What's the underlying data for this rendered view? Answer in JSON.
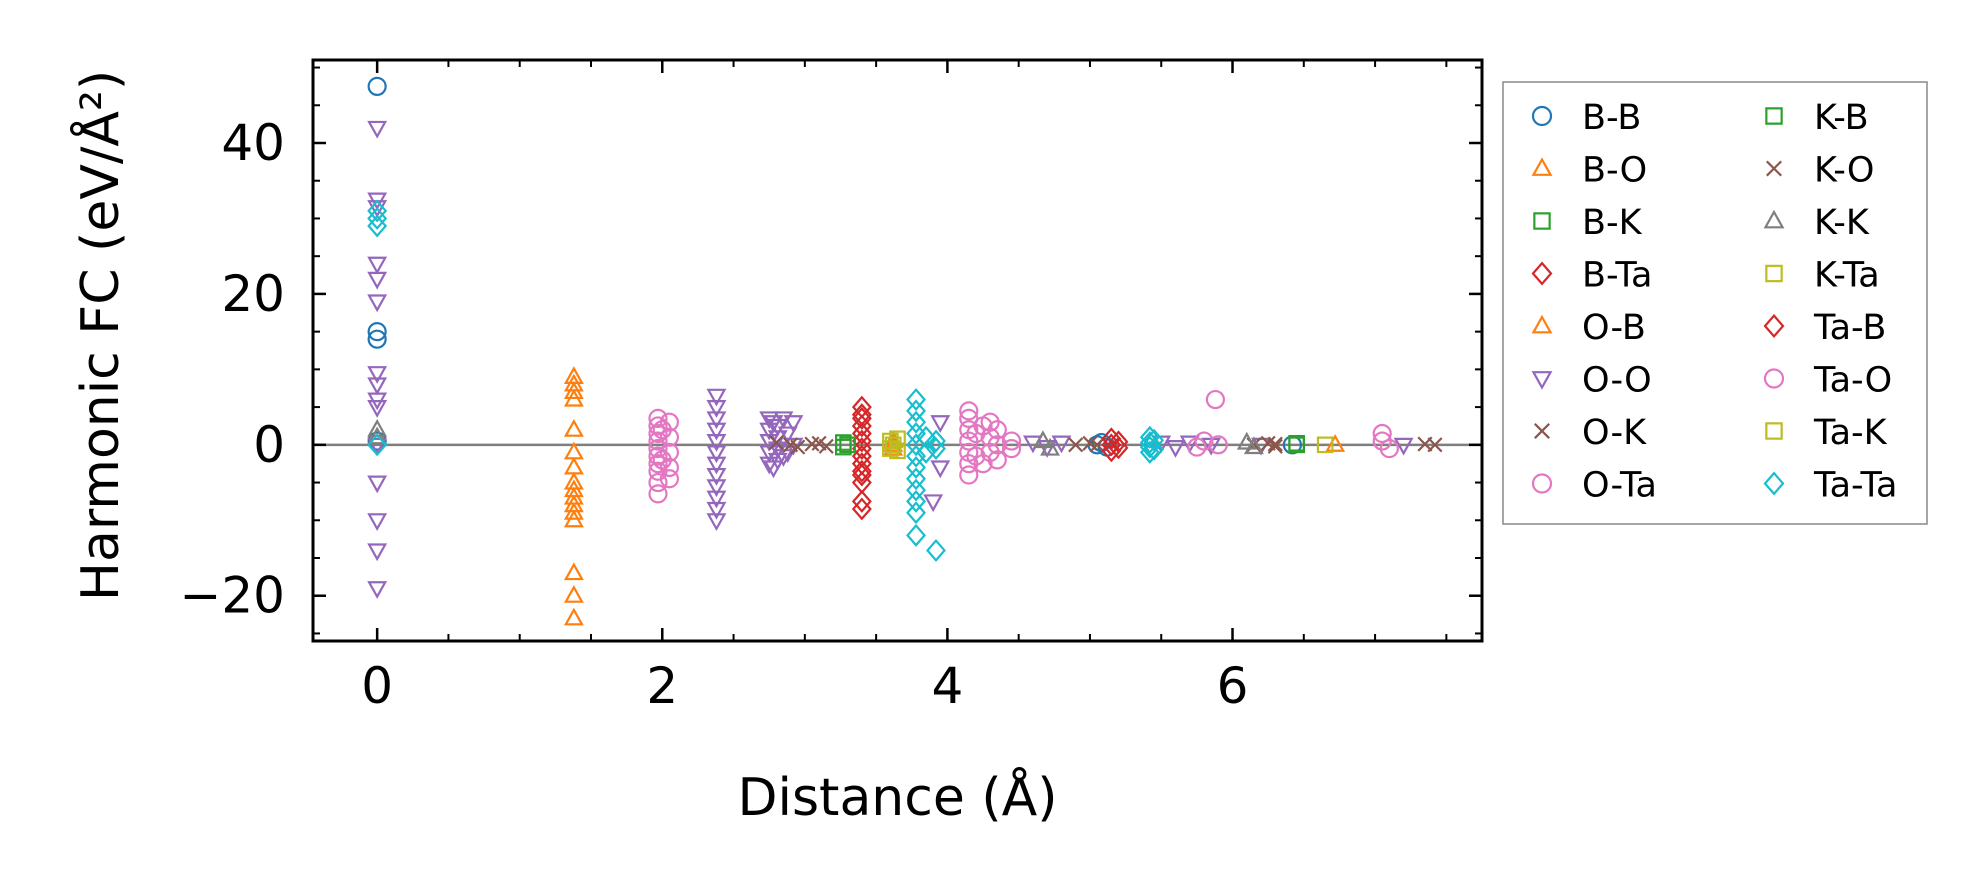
{
  "chart_data": {
    "type": "scatter",
    "title": "",
    "xlabel": "Distance (Å)",
    "ylabel": "Harmonic FC (eV/Å²)",
    "xlim": [
      -0.45,
      7.75
    ],
    "ylim": [
      -26,
      51
    ],
    "xticks": [
      0,
      2,
      4,
      6
    ],
    "yticks": [
      -20,
      0,
      20,
      40
    ],
    "ytick_labels": [
      "−20",
      "0",
      "20",
      "40"
    ],
    "reference_line_y": 0,
    "legend_position": "outside-right",
    "series": [
      {
        "name": "B-B",
        "color": "#1f77b4",
        "marker": "circle",
        "points": [
          [
            0,
            47.5
          ],
          [
            0,
            15
          ],
          [
            0,
            14
          ],
          [
            0,
            0.5
          ],
          [
            5.05,
            0
          ],
          [
            5.08,
            0.3
          ],
          [
            5.12,
            -0.3
          ],
          [
            6.42,
            0
          ]
        ]
      },
      {
        "name": "B-O",
        "color": "#ff7f0e",
        "marker": "triangle-up",
        "points": [
          [
            1.38,
            9
          ],
          [
            1.38,
            8
          ],
          [
            1.38,
            7
          ],
          [
            1.38,
            2
          ],
          [
            1.38,
            -1
          ],
          [
            1.38,
            -3
          ],
          [
            1.38,
            -5
          ],
          [
            1.38,
            -7
          ],
          [
            1.38,
            -8
          ],
          [
            1.38,
            -9
          ],
          [
            1.38,
            -10
          ],
          [
            1.38,
            -17
          ],
          [
            1.38,
            -20
          ],
          [
            1.38,
            -23
          ],
          [
            3.62,
            0.5
          ],
          [
            3.62,
            -0.5
          ],
          [
            6.72,
            0
          ]
        ]
      },
      {
        "name": "B-K",
        "color": "#2ca02c",
        "marker": "square",
        "points": [
          [
            3.27,
            0.3
          ],
          [
            3.27,
            -0.3
          ],
          [
            6.45,
            0
          ]
        ]
      },
      {
        "name": "B-Ta",
        "color": "#d62728",
        "marker": "diamond",
        "points": [
          [
            3.4,
            5
          ],
          [
            3.4,
            3.5
          ],
          [
            3.4,
            2.5
          ],
          [
            3.4,
            1.5
          ],
          [
            3.4,
            0.5
          ],
          [
            3.4,
            -0.5
          ],
          [
            3.4,
            -1.5
          ],
          [
            3.4,
            -2.5
          ],
          [
            3.4,
            -3.5
          ],
          [
            3.4,
            -5
          ],
          [
            3.4,
            -7.5
          ],
          [
            3.4,
            -8.5
          ]
        ]
      },
      {
        "name": "O-B",
        "color": "#ff7f0e",
        "marker": "triangle-up",
        "points": [
          [
            1.38,
            6
          ],
          [
            1.38,
            -6
          ],
          [
            3.62,
            0
          ]
        ]
      },
      {
        "name": "O-O",
        "color": "#9467bd",
        "marker": "triangle-down",
        "points": [
          [
            0,
            42
          ],
          [
            0,
            32.5
          ],
          [
            0,
            31.5
          ],
          [
            0,
            24
          ],
          [
            0,
            22
          ],
          [
            0,
            19
          ],
          [
            0,
            9.5
          ],
          [
            0,
            8
          ],
          [
            0,
            6
          ],
          [
            0,
            5
          ],
          [
            0,
            0
          ],
          [
            0,
            -5
          ],
          [
            0,
            -10
          ],
          [
            0,
            -14
          ],
          [
            0,
            -19
          ],
          [
            2.38,
            6.5
          ],
          [
            2.38,
            5
          ],
          [
            2.38,
            3.5
          ],
          [
            2.38,
            2
          ],
          [
            2.38,
            0.5
          ],
          [
            2.38,
            -1
          ],
          [
            2.38,
            -2.5
          ],
          [
            2.38,
            -4
          ],
          [
            2.38,
            -5.5
          ],
          [
            2.38,
            -7
          ],
          [
            2.38,
            -8.5
          ],
          [
            2.38,
            -10
          ],
          [
            2.75,
            3.5
          ],
          [
            2.75,
            2
          ],
          [
            2.75,
            0.5
          ],
          [
            2.75,
            -1
          ],
          [
            2.75,
            -2.5
          ],
          [
            2.78,
            3
          ],
          [
            2.78,
            -3
          ],
          [
            2.81,
            2.5
          ],
          [
            2.81,
            1
          ],
          [
            2.81,
            -0.5
          ],
          [
            2.81,
            -2
          ],
          [
            2.85,
            3.5
          ],
          [
            2.85,
            -1.5
          ],
          [
            2.88,
            1.5
          ],
          [
            2.88,
            -1
          ],
          [
            2.92,
            3
          ],
          [
            2.92,
            0
          ],
          [
            3.95,
            3
          ],
          [
            3.95,
            -3
          ],
          [
            3.9,
            -7.5
          ],
          [
            4.6,
            0.3
          ],
          [
            4.7,
            -0.3
          ],
          [
            4.8,
            0.3
          ],
          [
            5.5,
            0.3
          ],
          [
            5.6,
            -0.3
          ],
          [
            5.7,
            0.3
          ],
          [
            5.85,
            0
          ],
          [
            6.2,
            0
          ],
          [
            7.2,
            0
          ]
        ]
      },
      {
        "name": "O-K",
        "color": "#8c564b",
        "marker": "x",
        "points": [
          [
            2.8,
            0.3
          ],
          [
            2.95,
            -0.3
          ],
          [
            3.1,
            0.2
          ],
          [
            3.15,
            -0.2
          ],
          [
            4.9,
            0
          ],
          [
            5.0,
            0.2
          ],
          [
            6.15,
            0
          ],
          [
            6.25,
            0.2
          ],
          [
            6.3,
            -0.2
          ],
          [
            7.42,
            0
          ]
        ]
      },
      {
        "name": "O-Ta",
        "color": "#e377c2",
        "marker": "circle",
        "points": [
          [
            1.97,
            3.5
          ],
          [
            1.97,
            2.5
          ],
          [
            1.97,
            1.5
          ],
          [
            1.97,
            0.5
          ],
          [
            1.97,
            -0.5
          ],
          [
            1.97,
            -1.5
          ],
          [
            1.97,
            -2.5
          ],
          [
            1.97,
            -3.5
          ],
          [
            1.97,
            -5
          ],
          [
            1.97,
            -6.5
          ],
          [
            2.05,
            3
          ],
          [
            2.05,
            1
          ],
          [
            2.05,
            -1
          ],
          [
            2.05,
            -3
          ],
          [
            2.05,
            -4.5
          ],
          [
            4.15,
            4.5
          ],
          [
            4.15,
            3.5
          ],
          [
            4.15,
            2
          ],
          [
            4.15,
            0.5
          ],
          [
            4.15,
            -1
          ],
          [
            4.15,
            -2.5
          ],
          [
            4.15,
            -4
          ],
          [
            4.2,
            1.5
          ],
          [
            4.2,
            -1.5
          ],
          [
            4.3,
            3
          ],
          [
            4.3,
            1
          ],
          [
            4.3,
            -1
          ],
          [
            4.35,
            2
          ],
          [
            4.35,
            0
          ],
          [
            4.35,
            -2
          ],
          [
            4.45,
            0.5
          ],
          [
            4.45,
            -0.5
          ]
        ]
      },
      {
        "name": "K-B",
        "color": "#2ca02c",
        "marker": "square",
        "points": [
          [
            3.3,
            0
          ],
          [
            6.45,
            0.2
          ]
        ]
      },
      {
        "name": "K-O",
        "color": "#8c564b",
        "marker": "x",
        "points": [
          [
            2.9,
            0
          ],
          [
            3.05,
            0.1
          ],
          [
            5.05,
            0
          ],
          [
            6.3,
            0.1
          ],
          [
            7.35,
            0.1
          ]
        ]
      },
      {
        "name": "K-K",
        "color": "#7f7f7f",
        "marker": "triangle-up",
        "points": [
          [
            0,
            1
          ],
          [
            0,
            2
          ],
          [
            4.67,
            0.5
          ],
          [
            4.72,
            -0.5
          ],
          [
            6.1,
            0.3
          ],
          [
            6.15,
            -0.3
          ]
        ]
      },
      {
        "name": "K-Ta",
        "color": "#bcbd22",
        "marker": "square",
        "points": [
          [
            3.62,
            0
          ],
          [
            3.65,
            0.8
          ],
          [
            3.65,
            -0.8
          ],
          [
            6.65,
            0
          ]
        ]
      },
      {
        "name": "Ta-B",
        "color": "#d62728",
        "marker": "diamond",
        "points": [
          [
            3.4,
            4
          ],
          [
            3.4,
            -4
          ],
          [
            5.15,
            0.8
          ],
          [
            5.15,
            0
          ],
          [
            5.15,
            -0.8
          ],
          [
            5.2,
            0.4
          ],
          [
            5.2,
            -0.4
          ]
        ]
      },
      {
        "name": "Ta-O",
        "color": "#e377c2",
        "marker": "circle",
        "points": [
          [
            2.0,
            2
          ],
          [
            2.0,
            -2
          ],
          [
            4.25,
            2.5
          ],
          [
            4.25,
            -2.5
          ],
          [
            5.88,
            6
          ],
          [
            5.8,
            0.5
          ],
          [
            5.75,
            -0.3
          ],
          [
            5.9,
            0
          ],
          [
            7.05,
            1.5
          ],
          [
            7.05,
            0.5
          ],
          [
            7.1,
            -0.5
          ]
        ]
      },
      {
        "name": "Ta-K",
        "color": "#bcbd22",
        "marker": "square",
        "points": [
          [
            3.6,
            0.5
          ],
          [
            3.6,
            -0.5
          ]
        ]
      },
      {
        "name": "Ta-Ta",
        "color": "#17becf",
        "marker": "diamond",
        "points": [
          [
            0,
            31
          ],
          [
            0,
            30
          ],
          [
            0,
            29
          ],
          [
            0,
            0
          ],
          [
            3.78,
            6
          ],
          [
            3.78,
            4.5
          ],
          [
            3.78,
            3
          ],
          [
            3.78,
            1.5
          ],
          [
            3.78,
            0
          ],
          [
            3.78,
            -1.5
          ],
          [
            3.78,
            -3
          ],
          [
            3.78,
            -4.5
          ],
          [
            3.78,
            -6
          ],
          [
            3.78,
            -7.5
          ],
          [
            3.78,
            -9
          ],
          [
            3.78,
            -12
          ],
          [
            3.92,
            -14
          ],
          [
            3.85,
            1
          ],
          [
            3.85,
            -1
          ],
          [
            3.92,
            0.5
          ],
          [
            3.92,
            -0.5
          ],
          [
            5.42,
            1
          ],
          [
            5.42,
            0.3
          ],
          [
            5.42,
            -0.3
          ],
          [
            5.42,
            -1
          ],
          [
            5.45,
            0.6
          ],
          [
            5.45,
            -0.6
          ]
        ]
      }
    ]
  }
}
